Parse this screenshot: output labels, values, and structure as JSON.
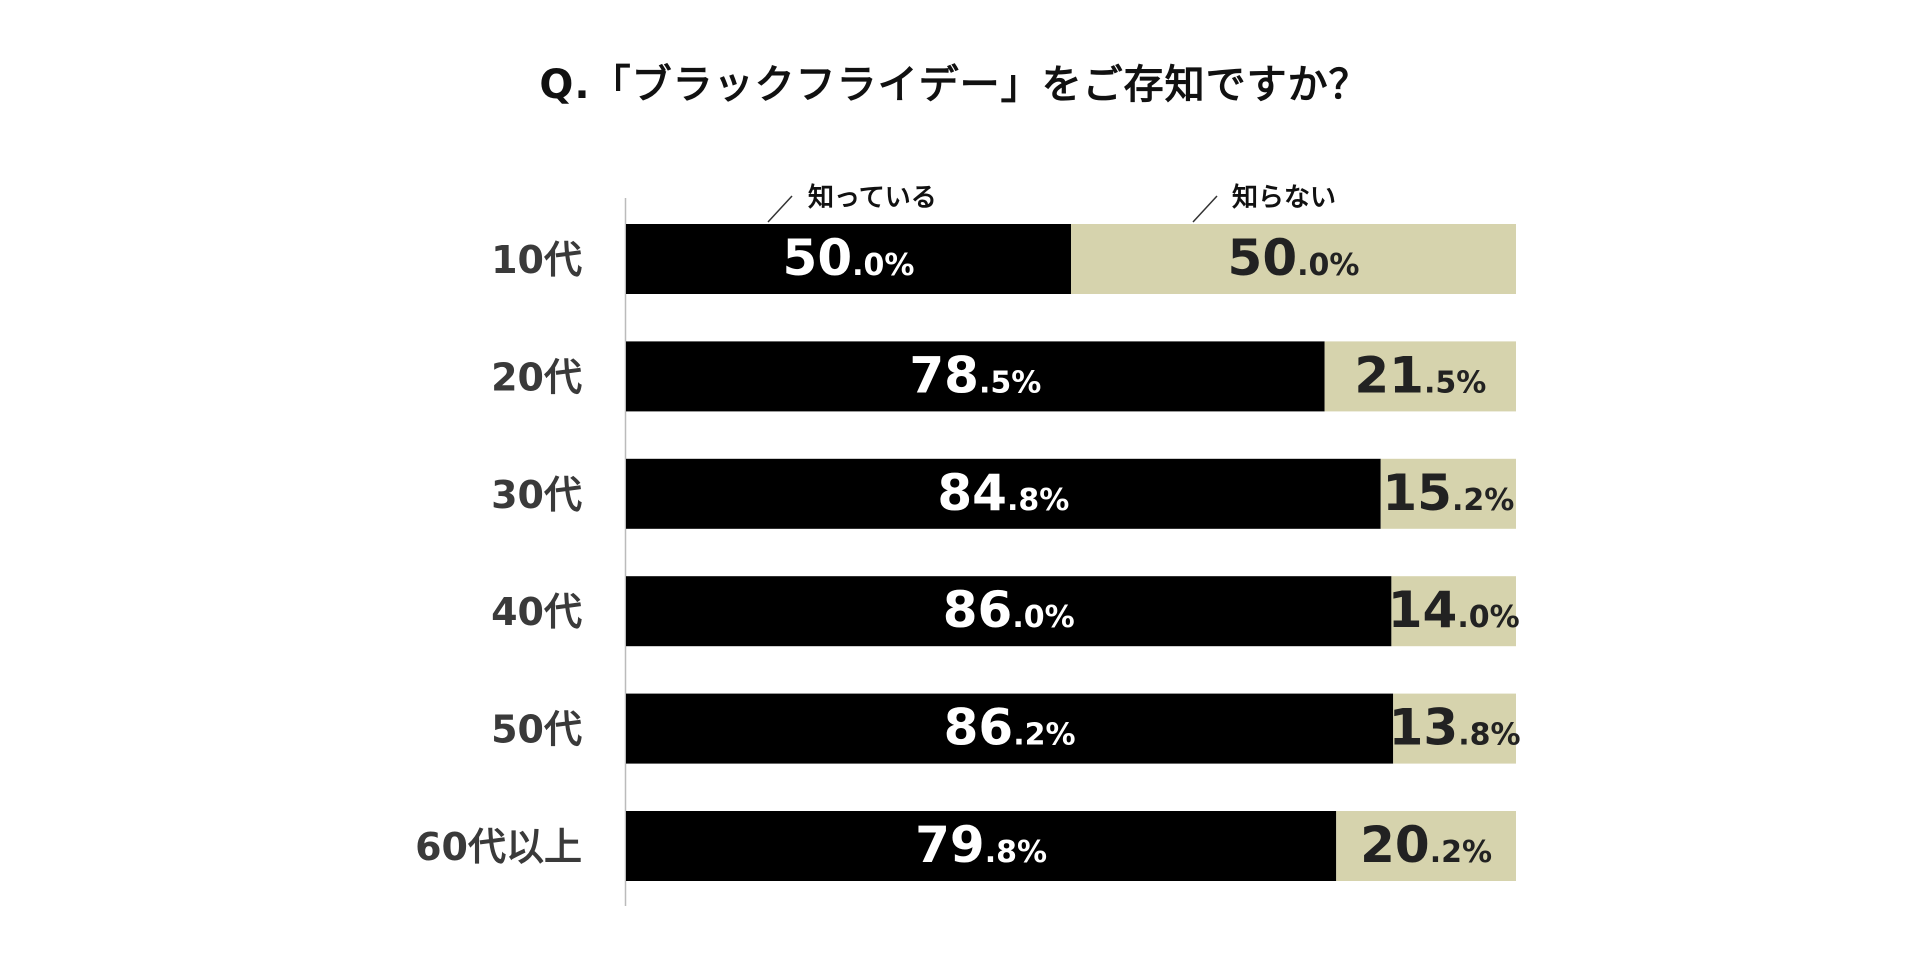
{
  "chart_data": {
    "type": "bar",
    "stacked": true,
    "orientation": "horizontal",
    "title": "Q.「ブラックフライデー」をご存知ですか？",
    "xlabel": "",
    "ylabel": "",
    "xlim": [
      0,
      100
    ],
    "categories": [
      "10代",
      "20代",
      "30代",
      "40代",
      "50代",
      "60代以上"
    ],
    "series": [
      {
        "name": "知っている",
        "color": "#000000",
        "label_color": "#ffffff",
        "values": [
          50.0,
          78.5,
          84.8,
          86.0,
          86.2,
          79.8
        ]
      },
      {
        "name": "知らない",
        "color": "#d6d3ad",
        "label_color": "#222222",
        "values": [
          50.0,
          21.5,
          15.2,
          14.0,
          13.8,
          20.2
        ]
      }
    ],
    "value_suffix": "%",
    "legend_placement": "top",
    "grid": false
  },
  "colors": {
    "category_text": "#3a3a3a",
    "axis_line": "#bbbbbb",
    "legend_text": "#111111"
  }
}
